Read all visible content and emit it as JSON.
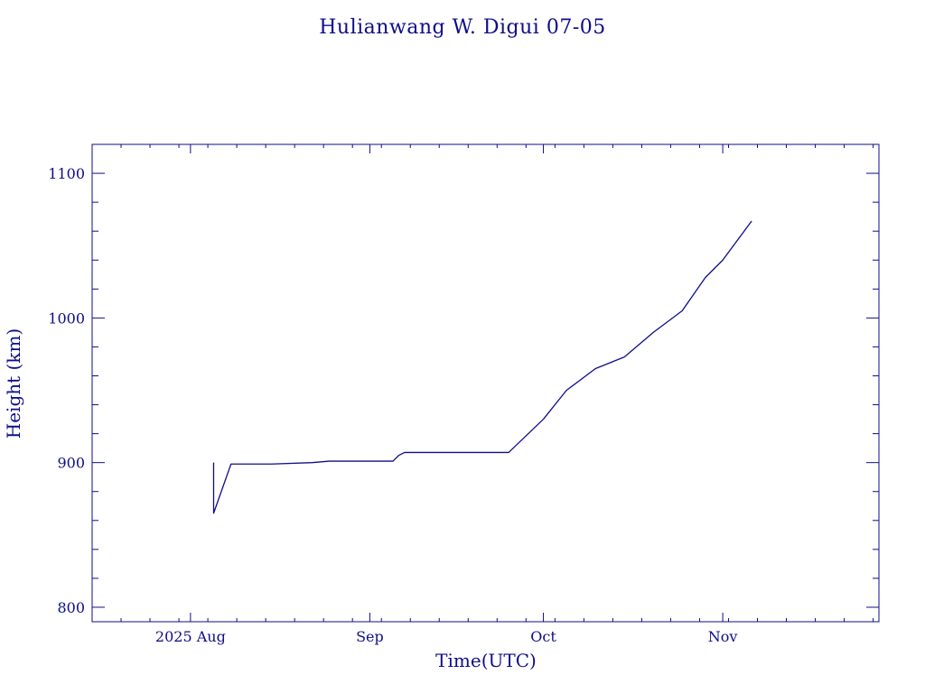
{
  "chart_data": {
    "type": "line",
    "title": "Hulianwang W. Digui 07-05",
    "xlabel": "Time(UTC)",
    "ylabel": "Height (km)",
    "ylim": [
      790,
      1120
    ],
    "xlim": [
      "2025-07-15",
      "2025-11-28"
    ],
    "x_ticks": [
      {
        "date": "2025-08-01",
        "label": "2025 Aug"
      },
      {
        "date": "2025-09-01",
        "label": "Sep"
      },
      {
        "date": "2025-10-01",
        "label": "Oct"
      },
      {
        "date": "2025-11-01",
        "label": "Nov"
      }
    ],
    "y_ticks": [
      800,
      900,
      1000,
      1100
    ],
    "color": "#0d0d8a",
    "grid": false,
    "series": [
      {
        "x": [
          "2025-08-05",
          "2025-08-05",
          "2025-08-08",
          "2025-08-15",
          "2025-08-22",
          "2025-08-25",
          "2025-09-01",
          "2025-09-05",
          "2025-09-06",
          "2025-09-07",
          "2025-09-15",
          "2025-09-25",
          "2025-10-01",
          "2025-10-05",
          "2025-10-10",
          "2025-10-15",
          "2025-10-20",
          "2025-10-25",
          "2025-10-29",
          "2025-11-01",
          "2025-11-06"
        ],
        "y": [
          900,
          865,
          899,
          899,
          900,
          901,
          901,
          901,
          905,
          907,
          907,
          907,
          930,
          950,
          965,
          973,
          990,
          1005,
          1028,
          1040,
          1067
        ]
      }
    ]
  }
}
